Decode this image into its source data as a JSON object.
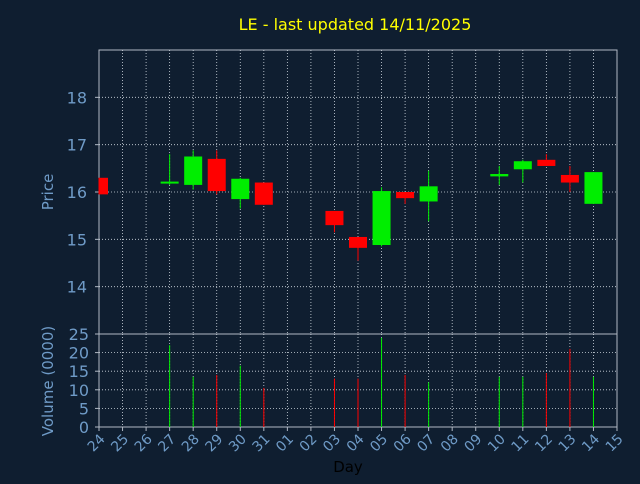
{
  "chart_data": {
    "type": "candlestick",
    "title": "LE - last updated 14/11/2025",
    "xlabel": "Day",
    "price_panel": {
      "ylabel": "Price",
      "ylim": [
        13.0,
        19.0
      ],
      "yticks": [
        14,
        15,
        16,
        17,
        18
      ],
      "grid": true
    },
    "volume_panel": {
      "ylabel": "Volume (0000)",
      "ylim": [
        0,
        25
      ],
      "yticks": [
        0,
        5,
        10,
        15,
        20,
        25
      ],
      "grid": true
    },
    "x_tick_labels": [
      "24",
      "25",
      "26",
      "27",
      "28",
      "29",
      "30",
      "31",
      "01",
      "02",
      "03",
      "04",
      "05",
      "06",
      "07",
      "08",
      "09",
      "10",
      "11",
      "12",
      "13",
      "14",
      "15"
    ],
    "candles": [
      {
        "day": "24",
        "open": 16.3,
        "high": 16.3,
        "low": 15.95,
        "close": 15.95,
        "volume": null
      },
      {
        "day": "27",
        "open": 16.2,
        "high": 16.8,
        "low": 16.15,
        "close": 16.22,
        "volume": 22
      },
      {
        "day": "28",
        "open": 16.15,
        "high": 16.88,
        "low": 16.05,
        "close": 16.75,
        "volume": 13.5
      },
      {
        "day": "29",
        "open": 16.7,
        "high": 16.88,
        "low": 15.95,
        "close": 16.02,
        "volume": 14
      },
      {
        "day": "30",
        "open": 15.85,
        "high": 16.3,
        "low": 15.65,
        "close": 16.28,
        "volume": 16.5
      },
      {
        "day": "31",
        "open": 16.2,
        "high": 16.2,
        "low": 15.73,
        "close": 15.73,
        "volume": 10.5
      },
      {
        "day": "03",
        "open": 15.6,
        "high": 15.6,
        "low": 15.15,
        "close": 15.3,
        "volume": 13
      },
      {
        "day": "04",
        "open": 15.05,
        "high": 15.05,
        "low": 14.55,
        "close": 14.82,
        "volume": 13
      },
      {
        "day": "05",
        "open": 14.88,
        "high": 16.1,
        "low": 14.85,
        "close": 16.02,
        "volume": 24
      },
      {
        "day": "06",
        "open": 16.0,
        "high": 16.0,
        "low": 15.75,
        "close": 15.87,
        "volume": 14
      },
      {
        "day": "07",
        "open": 15.8,
        "high": 16.45,
        "low": 15.38,
        "close": 16.12,
        "volume": 12
      },
      {
        "day": "10",
        "open": 16.33,
        "high": 16.55,
        "low": 16.15,
        "close": 16.38,
        "volume": 13.5
      },
      {
        "day": "11",
        "open": 16.48,
        "high": 16.68,
        "low": 16.2,
        "close": 16.65,
        "volume": 13.5
      },
      {
        "day": "12",
        "open": 16.68,
        "high": 16.8,
        "low": 16.55,
        "close": 16.55,
        "volume": 14.5
      },
      {
        "day": "13",
        "open": 16.36,
        "high": 16.55,
        "low": 16.0,
        "close": 16.2,
        "volume": 21
      },
      {
        "day": "14",
        "open": 15.75,
        "high": 16.42,
        "low": 15.75,
        "close": 16.42,
        "volume": 13.5
      }
    ],
    "colors": {
      "background": "#0f1e30",
      "axis": "#b0b8c4",
      "grid": "#d0d8e0",
      "title": "#ffff00",
      "labels": "#6f9bc7",
      "up": "#00ee00",
      "down": "#ff0000"
    }
  }
}
